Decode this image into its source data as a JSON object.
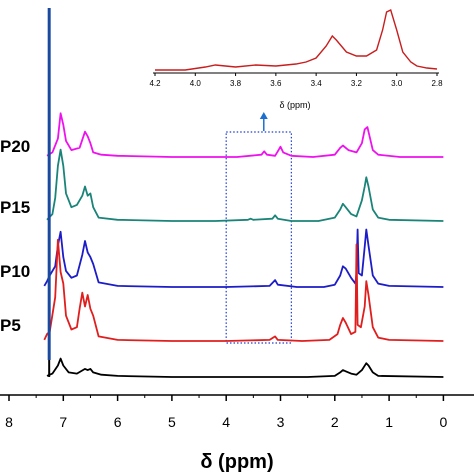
{
  "chart_data": [
    {
      "type": "line",
      "xlabel": "δ (ppm)",
      "xlim": [
        8,
        0
      ],
      "x_ticks": [
        "8",
        "7",
        "6",
        "5",
        "4",
        "3",
        "2",
        "1",
        "0"
      ],
      "series": [
        {
          "name": "P20",
          "color": "#ee11ee",
          "points": [
            [
              7.3,
              1
            ],
            [
              7.2,
              4
            ],
            [
              7.1,
              16
            ],
            [
              7.05,
              38
            ],
            [
              7.0,
              28
            ],
            [
              6.95,
              14
            ],
            [
              6.85,
              6
            ],
            [
              6.7,
              8
            ],
            [
              6.6,
              22
            ],
            [
              6.55,
              18
            ],
            [
              6.5,
              12
            ],
            [
              6.45,
              4
            ],
            [
              6.3,
              2
            ],
            [
              6.0,
              1
            ],
            [
              5.0,
              0
            ],
            [
              4.2,
              0
            ],
            [
              3.8,
              0
            ],
            [
              3.35,
              2
            ],
            [
              3.3,
              5
            ],
            [
              3.25,
              2
            ],
            [
              3.1,
              1
            ],
            [
              3.05,
              5
            ],
            [
              3.0,
              9
            ],
            [
              2.95,
              4
            ],
            [
              2.8,
              1
            ],
            [
              2.4,
              0
            ],
            [
              2.0,
              2
            ],
            [
              1.9,
              8
            ],
            [
              1.85,
              10
            ],
            [
              1.75,
              6
            ],
            [
              1.6,
              4
            ],
            [
              1.5,
              12
            ],
            [
              1.45,
              24
            ],
            [
              1.4,
              26
            ],
            [
              1.35,
              16
            ],
            [
              1.3,
              6
            ],
            [
              1.2,
              2
            ],
            [
              0.8,
              0
            ],
            [
              0.0,
              0
            ]
          ]
        },
        {
          "name": "P15",
          "color": "#1a8478",
          "points": [
            [
              7.3,
              1
            ],
            [
              7.2,
              6
            ],
            [
              7.15,
              20
            ],
            [
              7.1,
              48
            ],
            [
              7.05,
              62
            ],
            [
              7.0,
              48
            ],
            [
              6.95,
              24
            ],
            [
              6.85,
              12
            ],
            [
              6.75,
              14
            ],
            [
              6.65,
              22
            ],
            [
              6.6,
              30
            ],
            [
              6.55,
              22
            ],
            [
              6.5,
              24
            ],
            [
              6.45,
              12
            ],
            [
              6.35,
              3
            ],
            [
              6.0,
              1
            ],
            [
              5.0,
              0
            ],
            [
              4.2,
              0
            ],
            [
              3.6,
              1
            ],
            [
              3.55,
              2
            ],
            [
              3.5,
              1
            ],
            [
              3.15,
              2
            ],
            [
              3.1,
              5
            ],
            [
              3.05,
              2
            ],
            [
              2.8,
              0
            ],
            [
              2.3,
              0
            ],
            [
              2.0,
              3
            ],
            [
              1.9,
              10
            ],
            [
              1.85,
              15
            ],
            [
              1.8,
              12
            ],
            [
              1.7,
              6
            ],
            [
              1.6,
              4
            ],
            [
              1.5,
              18
            ],
            [
              1.45,
              30
            ],
            [
              1.42,
              38
            ],
            [
              1.38,
              30
            ],
            [
              1.3,
              10
            ],
            [
              1.2,
              3
            ],
            [
              1.0,
              1
            ],
            [
              0.0,
              0
            ]
          ]
        },
        {
          "name": "P10",
          "color": "#1c1cc8",
          "points": [
            [
              7.35,
              1
            ],
            [
              7.3,
              5
            ],
            [
              7.25,
              10
            ],
            [
              7.15,
              18
            ],
            [
              7.1,
              36
            ],
            [
              7.05,
              48
            ],
            [
              7.0,
              26
            ],
            [
              6.95,
              14
            ],
            [
              6.85,
              8
            ],
            [
              6.75,
              10
            ],
            [
              6.65,
              28
            ],
            [
              6.6,
              40
            ],
            [
              6.55,
              30
            ],
            [
              6.5,
              26
            ],
            [
              6.45,
              20
            ],
            [
              6.35,
              4
            ],
            [
              6.0,
              1
            ],
            [
              5.0,
              0
            ],
            [
              4.0,
              0
            ],
            [
              3.2,
              1
            ],
            [
              3.1,
              6
            ],
            [
              3.05,
              2
            ],
            [
              2.7,
              0
            ],
            [
              2.2,
              0
            ],
            [
              2.0,
              2
            ],
            [
              1.9,
              10
            ],
            [
              1.85,
              18
            ],
            [
              1.8,
              16
            ],
            [
              1.7,
              8
            ],
            [
              1.62,
              3
            ],
            [
              1.6,
              12
            ],
            [
              1.58,
              50
            ],
            [
              1.56,
              12
            ],
            [
              1.5,
              10
            ],
            [
              1.45,
              35
            ],
            [
              1.42,
              50
            ],
            [
              1.38,
              36
            ],
            [
              1.3,
              10
            ],
            [
              1.2,
              3
            ],
            [
              1.0,
              1
            ],
            [
              0.0,
              0
            ]
          ]
        },
        {
          "name": "P5",
          "color": "#e01e1e",
          "points": [
            [
              7.35,
              1
            ],
            [
              7.3,
              6
            ],
            [
              7.25,
              8
            ],
            [
              7.15,
              38
            ],
            [
              7.1,
              88
            ],
            [
              7.05,
              60
            ],
            [
              7.0,
              50
            ],
            [
              6.95,
              22
            ],
            [
              6.85,
              10
            ],
            [
              6.75,
              12
            ],
            [
              6.7,
              28
            ],
            [
              6.65,
              42
            ],
            [
              6.6,
              30
            ],
            [
              6.55,
              40
            ],
            [
              6.5,
              28
            ],
            [
              6.45,
              22
            ],
            [
              6.35,
              4
            ],
            [
              6.0,
              1
            ],
            [
              5.0,
              0
            ],
            [
              4.0,
              0
            ],
            [
              3.2,
              1
            ],
            [
              3.1,
              4
            ],
            [
              3.05,
              1
            ],
            [
              2.6,
              0
            ],
            [
              2.1,
              1
            ],
            [
              1.95,
              6
            ],
            [
              1.9,
              14
            ],
            [
              1.85,
              20
            ],
            [
              1.8,
              16
            ],
            [
              1.7,
              6
            ],
            [
              1.62,
              8
            ],
            [
              1.6,
              84
            ],
            [
              1.58,
              14
            ],
            [
              1.52,
              12
            ],
            [
              1.45,
              30
            ],
            [
              1.42,
              52
            ],
            [
              1.38,
              40
            ],
            [
              1.3,
              12
            ],
            [
              1.2,
              3
            ],
            [
              1.0,
              1
            ],
            [
              0.0,
              0
            ]
          ]
        },
        {
          "name": "",
          "color": "#000000",
          "points": [
            [
              7.3,
              1
            ],
            [
              7.2,
              3
            ],
            [
              7.1,
              10
            ],
            [
              7.05,
              16
            ],
            [
              7.0,
              10
            ],
            [
              6.9,
              4
            ],
            [
              6.75,
              3
            ],
            [
              6.6,
              7
            ],
            [
              6.55,
              6
            ],
            [
              6.5,
              7
            ],
            [
              6.45,
              4
            ],
            [
              6.3,
              2
            ],
            [
              6.0,
              1
            ],
            [
              5.0,
              0
            ],
            [
              2.5,
              0
            ],
            [
              2.0,
              1
            ],
            [
              1.9,
              4
            ],
            [
              1.85,
              6
            ],
            [
              1.8,
              5
            ],
            [
              1.7,
              3
            ],
            [
              1.6,
              2
            ],
            [
              1.5,
              6
            ],
            [
              1.42,
              12
            ],
            [
              1.38,
              10
            ],
            [
              1.3,
              4
            ],
            [
              1.2,
              1
            ],
            [
              0.0,
              0
            ]
          ]
        }
      ],
      "solvent_peak": {
        "x": 7.26,
        "color_top": "#1a4aa0",
        "color_bottom": "#000000"
      },
      "highlight_box": {
        "x_range": [
          4.0,
          2.8
        ],
        "color": "#1c3cd0",
        "style": "dotted"
      }
    },
    {
      "type": "line",
      "xlabel": "δ (ppm)",
      "xlim": [
        4.2,
        2.8
      ],
      "x_ticks": [
        "4.2",
        "4.0",
        "3.8",
        "3.6",
        "3.4",
        "3.2",
        "3.0",
        "2.8"
      ],
      "series": [
        {
          "name": "",
          "color": "#c81e1e",
          "points": [
            [
              4.2,
              0
            ],
            [
              4.05,
              0
            ],
            [
              3.95,
              3
            ],
            [
              3.9,
              5
            ],
            [
              3.85,
              4
            ],
            [
              3.8,
              3
            ],
            [
              3.7,
              5
            ],
            [
              3.6,
              4
            ],
            [
              3.5,
              6
            ],
            [
              3.45,
              8
            ],
            [
              3.4,
              12
            ],
            [
              3.35,
              24
            ],
            [
              3.32,
              34
            ],
            [
              3.3,
              30
            ],
            [
              3.25,
              18
            ],
            [
              3.2,
              14
            ],
            [
              3.15,
              14
            ],
            [
              3.1,
              20
            ],
            [
              3.07,
              40
            ],
            [
              3.05,
              58
            ],
            [
              3.03,
              60
            ],
            [
              3.0,
              40
            ],
            [
              2.97,
              18
            ],
            [
              2.93,
              8
            ],
            [
              2.9,
              4
            ],
            [
              2.85,
              2
            ],
            [
              2.8,
              1
            ]
          ]
        }
      ]
    }
  ]
}
